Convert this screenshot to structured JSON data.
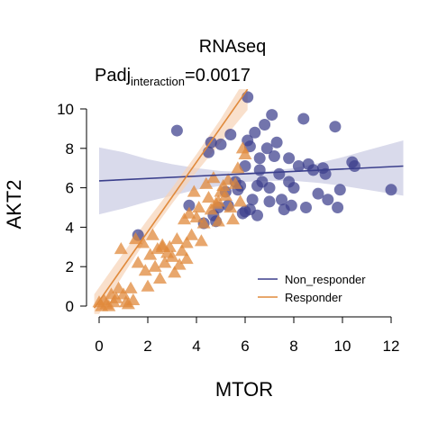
{
  "chart_data": {
    "type": "scatter",
    "title": "RNAseq",
    "subtitle_prefix": "Padj",
    "subtitle_subscript": "interaction",
    "subtitle_suffix": "=0.0017",
    "xlabel": "MTOR",
    "ylabel": "AKT2",
    "xlim": [
      -0.5,
      12.5
    ],
    "ylim": [
      -0.4,
      11
    ],
    "x_ticks": [
      0,
      2,
      4,
      6,
      8,
      10,
      12
    ],
    "y_ticks": [
      0,
      2,
      4,
      6,
      8,
      10
    ],
    "grid": false,
    "legend_position": "bottom-right",
    "series": [
      {
        "name": "Non_responder",
        "marker": "circle",
        "color": "#3b3f8c",
        "fit": {
          "x": [
            0,
            12.5
          ],
          "y": [
            6.35,
            7.1
          ]
        },
        "band": {
          "x": [
            0,
            1,
            2,
            3,
            4,
            5,
            6,
            7,
            8,
            9,
            10,
            11,
            12.5
          ],
          "lower": [
            4.65,
            4.95,
            5.3,
            5.6,
            5.9,
            6.1,
            6.3,
            6.35,
            6.35,
            6.25,
            6.1,
            5.9,
            5.6
          ],
          "upper": [
            8.05,
            7.8,
            7.45,
            7.2,
            7.0,
            6.85,
            6.8,
            6.85,
            7.0,
            7.25,
            7.55,
            7.9,
            8.4
          ]
        },
        "points": [
          [
            1.6,
            3.6
          ],
          [
            3.2,
            8.9
          ],
          [
            3.7,
            5.1
          ],
          [
            4.3,
            4.2
          ],
          [
            4.5,
            7.8
          ],
          [
            4.6,
            8.3
          ],
          [
            4.7,
            4.6
          ],
          [
            4.8,
            4.3
          ],
          [
            4.9,
            5.0
          ],
          [
            5.0,
            8.2
          ],
          [
            5.2,
            5.8
          ],
          [
            5.3,
            5.1
          ],
          [
            5.4,
            8.7
          ],
          [
            5.6,
            6.3
          ],
          [
            5.7,
            5.9
          ],
          [
            5.8,
            6.1
          ],
          [
            5.9,
            4.7
          ],
          [
            6.0,
            7.1
          ],
          [
            6.1,
            10.6
          ],
          [
            6.1,
            8.4
          ],
          [
            6.2,
            8.1
          ],
          [
            6.2,
            4.9
          ],
          [
            6.3,
            5.4
          ],
          [
            6.4,
            8.8
          ],
          [
            6.5,
            6.1
          ],
          [
            6.5,
            4.6
          ],
          [
            6.6,
            7.5
          ],
          [
            6.6,
            6.9
          ],
          [
            6.7,
            6.3
          ],
          [
            6.8,
            9.2
          ],
          [
            6.9,
            8.0
          ],
          [
            7.0,
            6.0
          ],
          [
            7.0,
            5.3
          ],
          [
            7.1,
            9.7
          ],
          [
            7.2,
            7.6
          ],
          [
            7.3,
            8.3
          ],
          [
            7.4,
            6.7
          ],
          [
            7.5,
            5.4
          ],
          [
            7.6,
            4.9
          ],
          [
            7.8,
            6.3
          ],
          [
            7.9,
            5.1
          ],
          [
            8.0,
            6.0
          ],
          [
            8.2,
            7.1
          ],
          [
            8.4,
            9.5
          ],
          [
            8.5,
            5.0
          ],
          [
            8.6,
            7.2
          ],
          [
            8.8,
            6.9
          ],
          [
            9.0,
            5.7
          ],
          [
            9.2,
            7.0
          ],
          [
            9.3,
            6.7
          ],
          [
            9.4,
            5.4
          ],
          [
            9.7,
            9.1
          ],
          [
            9.8,
            5.0
          ],
          [
            9.9,
            5.9
          ],
          [
            10.4,
            7.3
          ],
          [
            10.5,
            7.1
          ],
          [
            12.0,
            5.9
          ],
          [
            7.8,
            7.5
          ],
          [
            6.0,
            4.8
          ]
        ]
      },
      {
        "name": "Responder",
        "marker": "triangle",
        "color": "#e08a3c",
        "fit": {
          "x": [
            -0.2,
            6.1
          ],
          "y": [
            -0.1,
            11.0
          ]
        },
        "band": {
          "x": [
            -0.2,
            1,
            2,
            3,
            4,
            5,
            6,
            6.1
          ],
          "lower": [
            -0.8,
            1.6,
            3.5,
            5.2,
            6.8,
            8.3,
            9.8,
            9.95
          ],
          "upper": [
            0.6,
            2.7,
            4.4,
            6.0,
            7.7,
            9.5,
            11.5,
            11.7
          ]
        },
        "points": [
          [
            0.0,
            0.2
          ],
          [
            0.1,
            0.0
          ],
          [
            0.2,
            0.3
          ],
          [
            0.3,
            0.1
          ],
          [
            0.4,
            0.0
          ],
          [
            0.5,
            0.6
          ],
          [
            0.6,
            0.2
          ],
          [
            0.7,
            0.4
          ],
          [
            0.8,
            0.9
          ],
          [
            0.9,
            2.9
          ],
          [
            1.0,
            0.6
          ],
          [
            1.1,
            0.2
          ],
          [
            1.2,
            0.1
          ],
          [
            1.3,
            0.9
          ],
          [
            1.4,
            0.3
          ],
          [
            1.6,
            2.2
          ],
          [
            1.8,
            3.2
          ],
          [
            1.9,
            1.8
          ],
          [
            2.0,
            1.0
          ],
          [
            2.1,
            2.6
          ],
          [
            2.2,
            3.6
          ],
          [
            2.3,
            2.0
          ],
          [
            2.4,
            2.9
          ],
          [
            2.5,
            1.4
          ],
          [
            2.6,
            3.1
          ],
          [
            2.7,
            2.2
          ],
          [
            2.8,
            2.7
          ],
          [
            2.9,
            3.0
          ],
          [
            3.0,
            2.5
          ],
          [
            3.1,
            1.7
          ],
          [
            3.2,
            3.4
          ],
          [
            3.3,
            2.1
          ],
          [
            3.4,
            2.8
          ],
          [
            3.5,
            4.4
          ],
          [
            3.6,
            3.2
          ],
          [
            3.7,
            4.7
          ],
          [
            3.8,
            3.6
          ],
          [
            3.9,
            5.8
          ],
          [
            4.0,
            4.5
          ],
          [
            4.1,
            5.0
          ],
          [
            4.2,
            3.3
          ],
          [
            4.3,
            4.2
          ],
          [
            4.4,
            6.2
          ],
          [
            4.5,
            5.5
          ],
          [
            4.6,
            4.9
          ],
          [
            4.7,
            6.5
          ],
          [
            4.8,
            5.2
          ],
          [
            4.9,
            4.3
          ],
          [
            5.0,
            5.8
          ],
          [
            5.1,
            6.1
          ],
          [
            5.2,
            5.6
          ],
          [
            5.3,
            6.4
          ],
          [
            5.4,
            5.0
          ],
          [
            5.5,
            4.4
          ],
          [
            5.6,
            6.2
          ],
          [
            5.7,
            7.0
          ],
          [
            5.8,
            5.3
          ],
          [
            5.9,
            8.0
          ],
          [
            6.0,
            7.7
          ],
          [
            2.6,
            3.0
          ],
          [
            3.6,
            2.4
          ],
          [
            1.5,
            3.4
          ],
          [
            4.9,
            5.3
          ]
        ]
      }
    ]
  }
}
